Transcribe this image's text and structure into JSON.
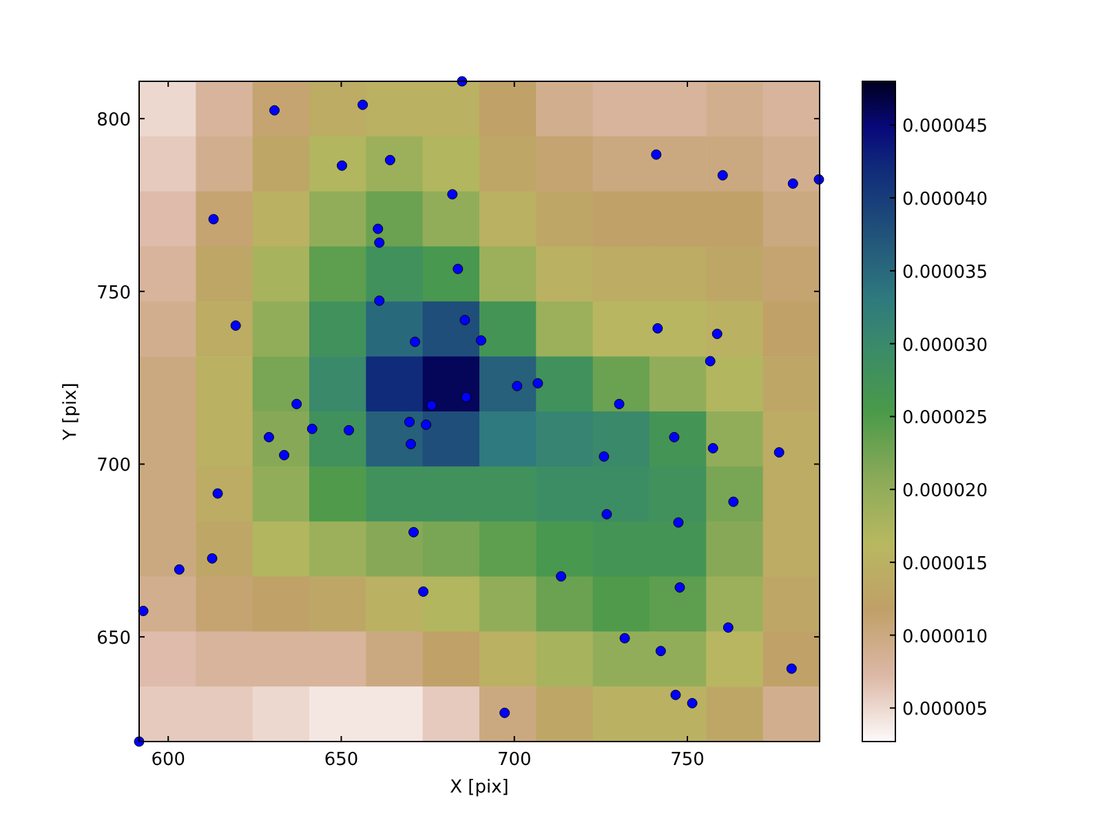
{
  "chart_data": [
    {
      "type": "heatmap",
      "categories": [
        null,
        null,
        null,
        null,
        null,
        null,
        null,
        null,
        null,
        null,
        null,
        null
      ],
      "y_categories": [
        null,
        null,
        null,
        null,
        null,
        null,
        null,
        null,
        null,
        null,
        null,
        null
      ],
      "clim": [
        2.7e-06,
        4.8e-05
      ],
      "cticks": [
        {
          "value": 5e-06,
          "label": "0.000005"
        },
        {
          "value": 1e-05,
          "label": "0.000010"
        },
        {
          "value": 1.5e-05,
          "label": "0.000015"
        },
        {
          "value": 2e-05,
          "label": "0.000020"
        },
        {
          "value": 2.5e-05,
          "label": "0.000025"
        },
        {
          "value": 3e-05,
          "label": "0.000030"
        },
        {
          "value": 3.5e-05,
          "label": "0.000035"
        },
        {
          "value": 4e-05,
          "label": "0.000040"
        },
        {
          "value": 4.5e-05,
          "label": "0.000045"
        }
      ],
      "cells": [
        [
          5e-06,
          8e-06,
          1.1e-05,
          1.4e-05,
          1.5e-05,
          1.5e-05,
          1.2e-05,
          9e-06,
          8e-06,
          8e-06,
          9e-06,
          8e-06
        ],
        [
          6e-06,
          9e-06,
          1.3e-05,
          1.7e-05,
          1.9e-05,
          1.7e-05,
          1.3e-05,
          1.1e-05,
          1e-05,
          1e-05,
          1e-05,
          9e-06
        ],
        [
          7e-06,
          1.1e-05,
          1.5e-05,
          2e-05,
          2.3e-05,
          2e-05,
          1.5e-05,
          1.3e-05,
          1.2e-05,
          1.2e-05,
          1.2e-05,
          1e-05
        ],
        [
          8e-06,
          1.3e-05,
          1.8e-05,
          2.4e-05,
          2.8e-05,
          2.6e-05,
          1.9e-05,
          1.5e-05,
          1.4e-05,
          1.4e-05,
          1.3e-05,
          1.1e-05
        ],
        [
          9e-06,
          1.4e-05,
          2e-05,
          2.8e-05,
          3.5e-05,
          3.8e-05,
          2.7e-05,
          1.9e-05,
          1.6e-05,
          1.6e-05,
          1.5e-05,
          1.2e-05
        ],
        [
          1e-05,
          1.5e-05,
          2.2e-05,
          3e-05,
          4.2e-05,
          4.6e-05,
          3.6e-05,
          2.8e-05,
          2.3e-05,
          2e-05,
          1.7e-05,
          1.3e-05
        ],
        [
          1e-05,
          1.5e-05,
          2.1e-05,
          2.8e-05,
          3.6e-05,
          3.8e-05,
          3.3e-05,
          3.1e-05,
          3e-05,
          2.7e-05,
          2e-05,
          1.4e-05
        ],
        [
          1e-05,
          1.4e-05,
          2e-05,
          2.5e-05,
          2.8e-05,
          2.8e-05,
          2.8e-05,
          2.9e-05,
          2.9e-05,
          2.8e-05,
          2.2e-05,
          1.4e-05
        ],
        [
          1e-05,
          1.3e-05,
          1.7e-05,
          1.9e-05,
          2.1e-05,
          2.2e-05,
          2.4e-05,
          2.6e-05,
          2.7e-05,
          2.7e-05,
          2.1e-05,
          1.4e-05
        ],
        [
          9e-06,
          1.1e-05,
          1.2e-05,
          1.3e-05,
          1.5e-05,
          1.7e-05,
          2e-05,
          2.3e-05,
          2.5e-05,
          2.4e-05,
          1.9e-05,
          1.3e-05
        ],
        [
          7e-06,
          8e-06,
          8e-06,
          8e-06,
          1e-05,
          1.2e-05,
          1.5e-05,
          1.8e-05,
          2e-05,
          2e-05,
          1.6e-05,
          1.2e-05
        ],
        [
          6e-06,
          6e-06,
          5e-06,
          4e-06,
          4e-06,
          6e-06,
          1e-05,
          1.3e-05,
          1.5e-05,
          1.5e-05,
          1.3e-05,
          9e-06
        ]
      ]
    },
    {
      "type": "scatter",
      "xlabel": "X [pix]",
      "ylabel": "Y [pix]",
      "xlim": [
        591.6,
        788.2
      ],
      "ylim": [
        619.7,
        810.8
      ],
      "xticks": [
        600,
        650,
        700,
        750
      ],
      "yticks": [
        650,
        700,
        750,
        800
      ],
      "series": [
        {
          "color": "#0000ff",
          "marker": "circle",
          "x": [
            630.7,
            656.2,
            684.9,
            650.2,
            664.1,
            682.1,
            613.1,
            660.6,
            661.0,
            683.7,
            661.0,
            619.5,
            685.7,
            671.3,
            690.4,
            637.1,
            676.1,
            641.6,
            652.2,
            629.1,
            669.7,
            674.5,
            670.1,
            633.5,
            686.1,
            700.8,
            706.8,
            741.0,
            760.2,
            780.5,
            788.0,
            741.4,
            758.6,
            756.6,
            730.3,
            725.9,
            746.2,
            757.4,
            776.5,
            763.3,
            726.7,
            747.4,
            670.9,
            614.3,
            713.5,
            747.8,
            603.2,
            612.7,
            673.7,
            592.8,
            731.9,
            742.3,
            761.8,
            780.1,
            746.6,
            751.4,
            697.2,
            591.6
          ],
          "values": [
            802.4,
            804.0,
            810.8,
            786.4,
            788.0,
            778.1,
            770.9,
            768.1,
            764.1,
            756.5,
            747.3,
            740.1,
            741.7,
            735.4,
            735.8,
            717.4,
            717.0,
            710.2,
            709.8,
            707.8,
            712.2,
            711.4,
            705.8,
            702.6,
            719.4,
            722.6,
            723.4,
            789.6,
            783.6,
            781.2,
            782.4,
            739.3,
            737.7,
            729.8,
            717.4,
            702.2,
            707.8,
            704.6,
            703.4,
            689.1,
            685.5,
            683.1,
            680.3,
            691.5,
            667.5,
            664.3,
            669.5,
            672.7,
            663.1,
            657.5,
            649.6,
            645.9,
            652.7,
            640.8,
            633.2,
            630.8,
            628.0,
            619.7
          ]
        }
      ]
    }
  ]
}
